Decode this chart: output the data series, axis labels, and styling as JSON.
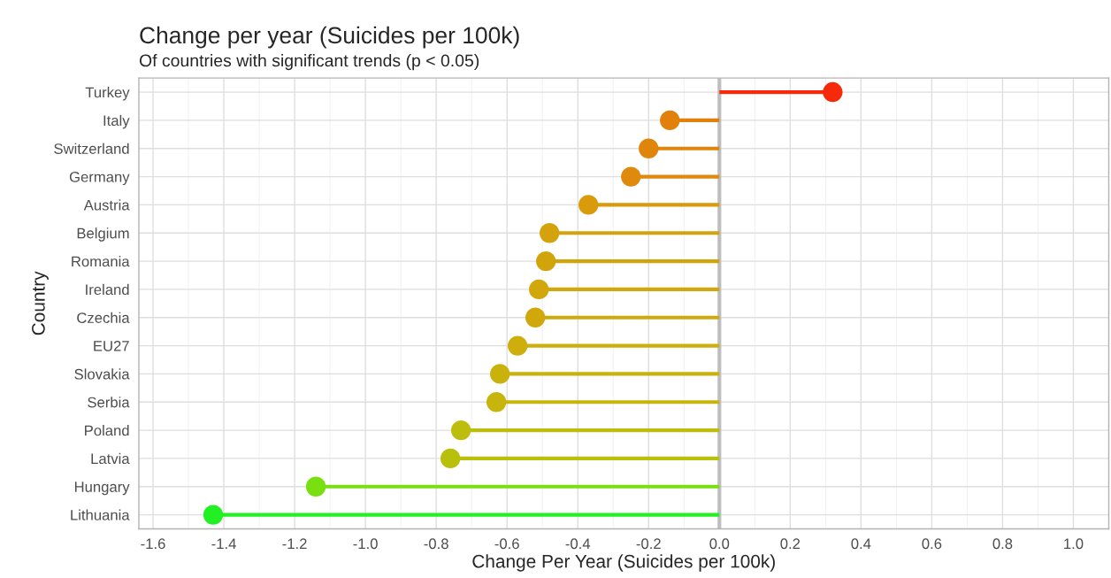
{
  "chart_data": {
    "type": "lollipop",
    "orientation": "horizontal",
    "title": "Change per year (Suicides per 100k)",
    "subtitle": "Of countries with significant trends (p < 0.05)",
    "xlabel": "Change Per Year (Suicides per 100k)",
    "ylabel": "Country",
    "categories": [
      "Turkey",
      "Italy",
      "Switzerland",
      "Germany",
      "Austria",
      "Belgium",
      "Romania",
      "Ireland",
      "Czechia",
      "EU27",
      "Slovakia",
      "Serbia",
      "Poland",
      "Latvia",
      "Hungary",
      "Lithuania"
    ],
    "values": [
      0.32,
      -0.14,
      -0.2,
      -0.25,
      -0.37,
      -0.48,
      -0.49,
      -0.51,
      -0.52,
      -0.57,
      -0.62,
      -0.63,
      -0.73,
      -0.76,
      -1.14,
      -1.43
    ],
    "colors": [
      "#f52a0a",
      "#e2800c",
      "#e0850c",
      "#df8a0c",
      "#d99a0c",
      "#d3a20c",
      "#d2a40c",
      "#d1a70c",
      "#d0a80c",
      "#cdae0c",
      "#c9b20c",
      "#c7b40c",
      "#bcbd0c",
      "#b8c00c",
      "#78e010",
      "#22f022"
    ],
    "xlim": [
      -1.64,
      1.1
    ],
    "xticks": [
      -1.6,
      -1.4,
      -1.2,
      {
        "value": -1,
        "label": "-1.0"
      },
      -0.8,
      -0.6,
      -0.4,
      -0.2,
      {
        "value": 0,
        "label": "0.0"
      },
      0.2,
      0.4,
      0.6,
      0.8,
      {
        "value": 1,
        "label": "1.0"
      }
    ],
    "ref_lines": [
      {
        "axis": "x",
        "value": 0,
        "color": "#bebebe"
      }
    ],
    "grid": true,
    "marker": "circle"
  }
}
